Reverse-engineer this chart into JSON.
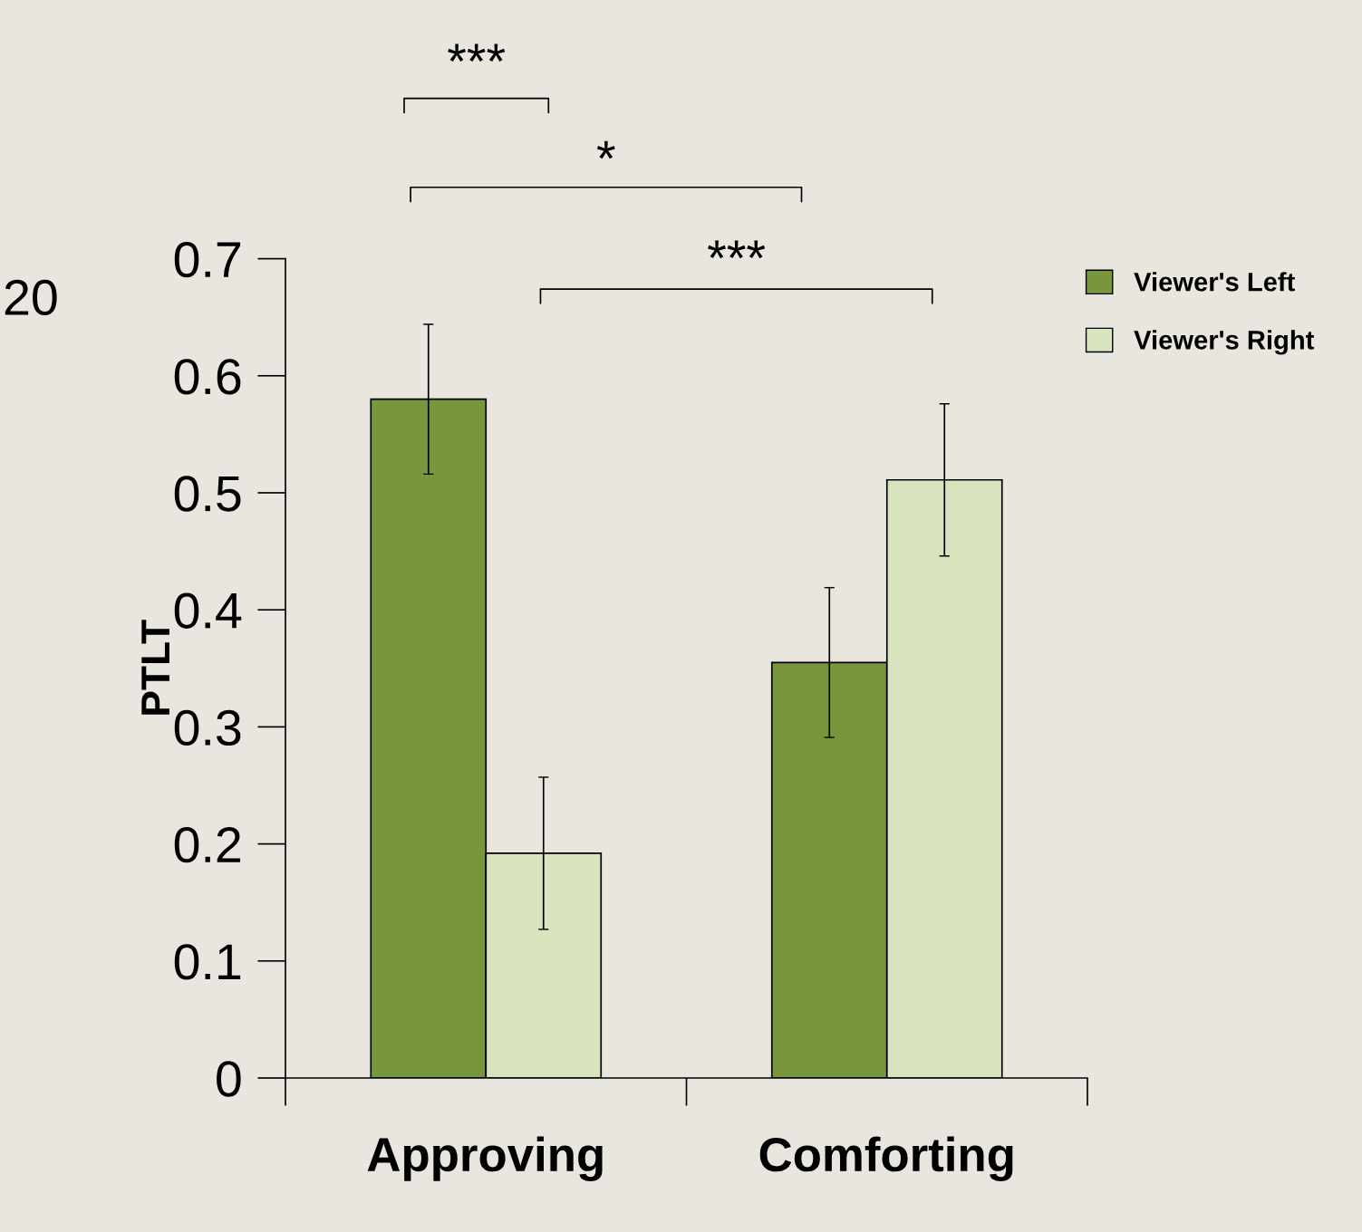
{
  "chart_data": {
    "type": "bar",
    "ylabel": "PTLT",
    "categories": [
      "Approving",
      "Comforting"
    ],
    "series": [
      {
        "name": "Viewer's Left",
        "color": "#78963c",
        "values": [
          0.58,
          0.355
        ],
        "errors": [
          0.064,
          0.064
        ]
      },
      {
        "name": "Viewer's Right",
        "color": "#d7e4bd",
        "values": [
          0.192,
          0.511
        ],
        "errors": [
          0.065,
          0.065
        ]
      }
    ],
    "ylim": [
      0,
      0.7
    ],
    "yticks": [
      0,
      0.1,
      0.2,
      0.3,
      0.4,
      0.5,
      0.6,
      0.7
    ],
    "legend": "top right",
    "grid": false,
    "annotations": [
      "***",
      "*",
      "***",
      "20"
    ]
  }
}
